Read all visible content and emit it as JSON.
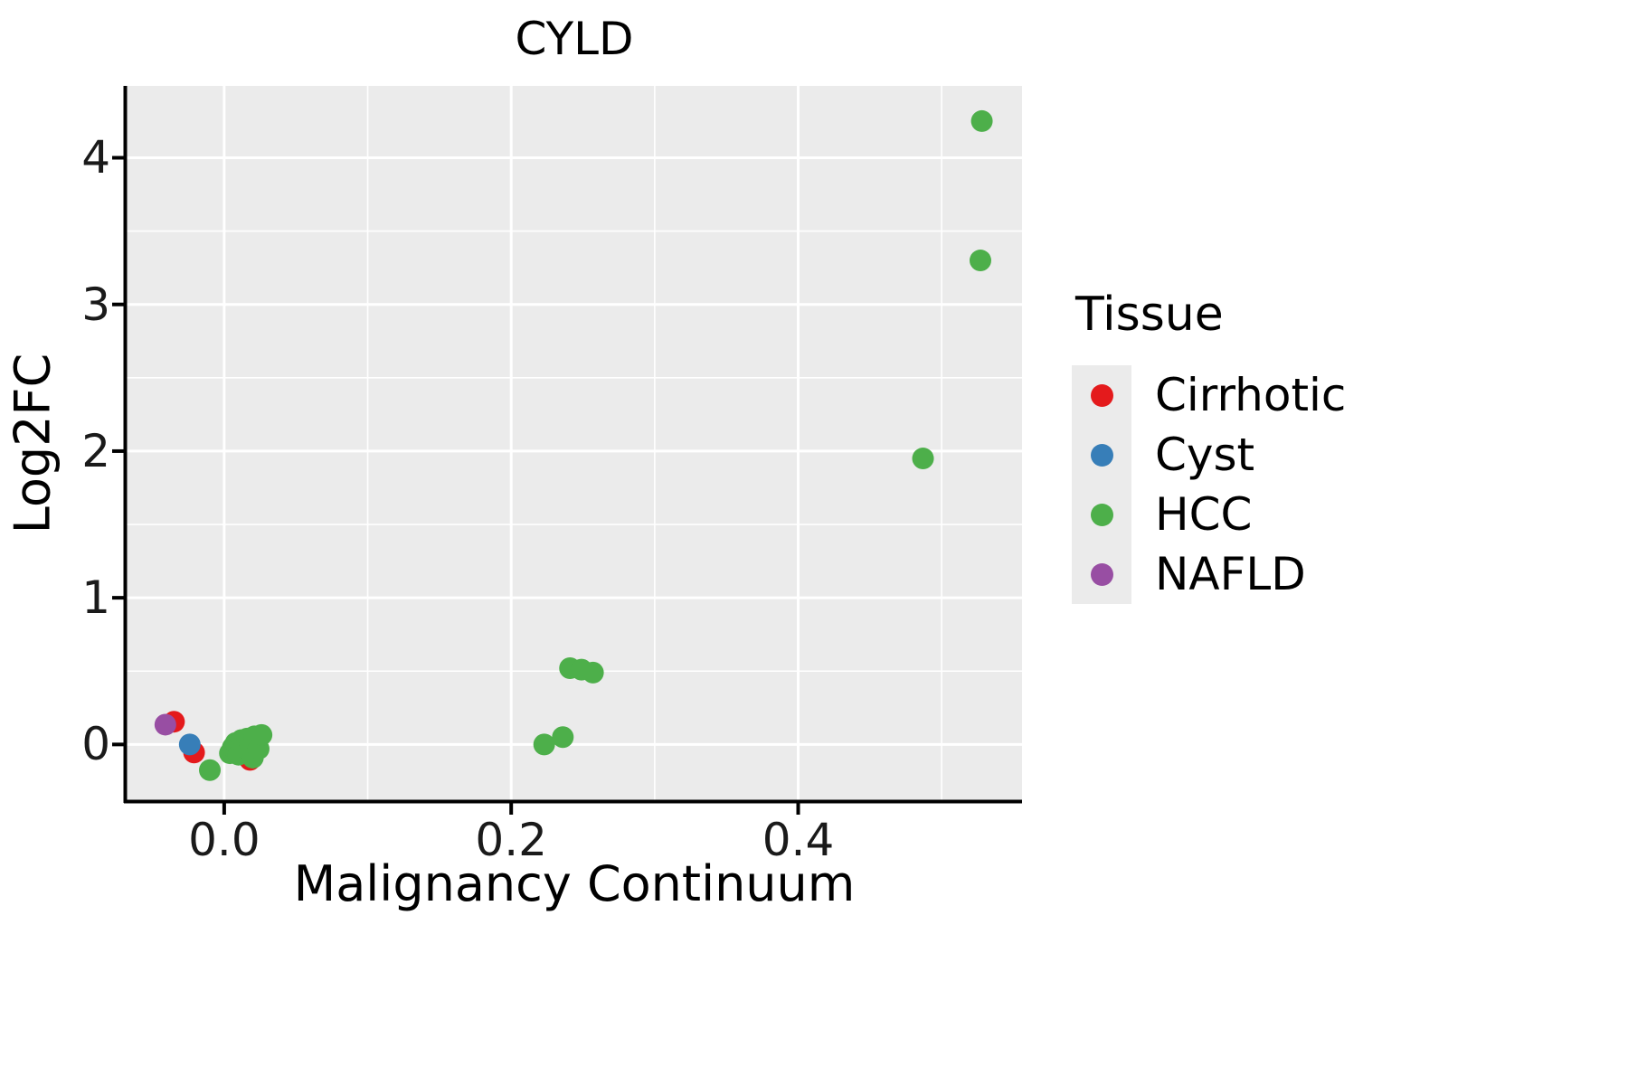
{
  "title": "CYLD",
  "xlabel": "Malignancy Continuum",
  "ylabel": "Log2FC",
  "legend": {
    "title": "Tissue",
    "items": [
      {
        "label": "Cirrhotic",
        "color": "#e41a1c"
      },
      {
        "label": "Cyst",
        "color": "#377eb8"
      },
      {
        "label": "HCC",
        "color": "#4daf4a"
      },
      {
        "label": "NAFLD",
        "color": "#984ea3"
      }
    ]
  },
  "chart_data": {
    "type": "scatter",
    "title": "CYLD",
    "xlabel": "Malignancy Continuum",
    "ylabel": "Log2FC",
    "xlim": [
      -0.068,
      0.556
    ],
    "ylim": [
      -0.38,
      4.49
    ],
    "x_ticks": [
      0.0,
      0.2,
      0.4
    ],
    "x_tick_labels": [
      "0.0",
      "0.2",
      "0.4"
    ],
    "y_ticks": [
      0,
      1,
      2,
      3,
      4
    ],
    "y_tick_labels": [
      "0",
      "1",
      "2",
      "3",
      "4"
    ],
    "x_minor": [
      0.1,
      0.3,
      0.5
    ],
    "y_minor": [
      0.5,
      1.5,
      2.5,
      3.5
    ],
    "panel_bg": "#ebebeb",
    "grid_color": "#ffffff",
    "axis_color": "#000000",
    "legend_position": "right",
    "grid": true,
    "point_radius": 12,
    "series": [
      {
        "name": "Cirrhotic",
        "color": "#e41a1c",
        "points": [
          [
            -0.035,
            0.155
          ],
          [
            -0.021,
            -0.055
          ],
          [
            0.018,
            -0.105
          ]
        ]
      },
      {
        "name": "Cyst",
        "color": "#377eb8",
        "points": [
          [
            -0.024,
            0.0
          ]
        ]
      },
      {
        "name": "HCC",
        "color": "#4daf4a",
        "points": [
          [
            -0.01,
            -0.175
          ],
          [
            0.004,
            -0.06
          ],
          [
            0.006,
            -0.02
          ],
          [
            0.008,
            0.01
          ],
          [
            0.01,
            -0.07
          ],
          [
            0.012,
            0.03
          ],
          [
            0.014,
            -0.02
          ],
          [
            0.016,
            0.04
          ],
          [
            0.018,
            0.0
          ],
          [
            0.02,
            -0.09
          ],
          [
            0.021,
            0.055
          ],
          [
            0.024,
            -0.03
          ],
          [
            0.026,
            0.065
          ],
          [
            0.223,
            0.0
          ],
          [
            0.236,
            0.05
          ],
          [
            0.241,
            0.52
          ],
          [
            0.249,
            0.51
          ],
          [
            0.257,
            0.49
          ],
          [
            0.487,
            1.95
          ],
          [
            0.527,
            3.3
          ],
          [
            0.528,
            4.25
          ]
        ]
      },
      {
        "name": "NAFLD",
        "color": "#984ea3",
        "points": [
          [
            -0.041,
            0.135
          ]
        ]
      }
    ]
  }
}
